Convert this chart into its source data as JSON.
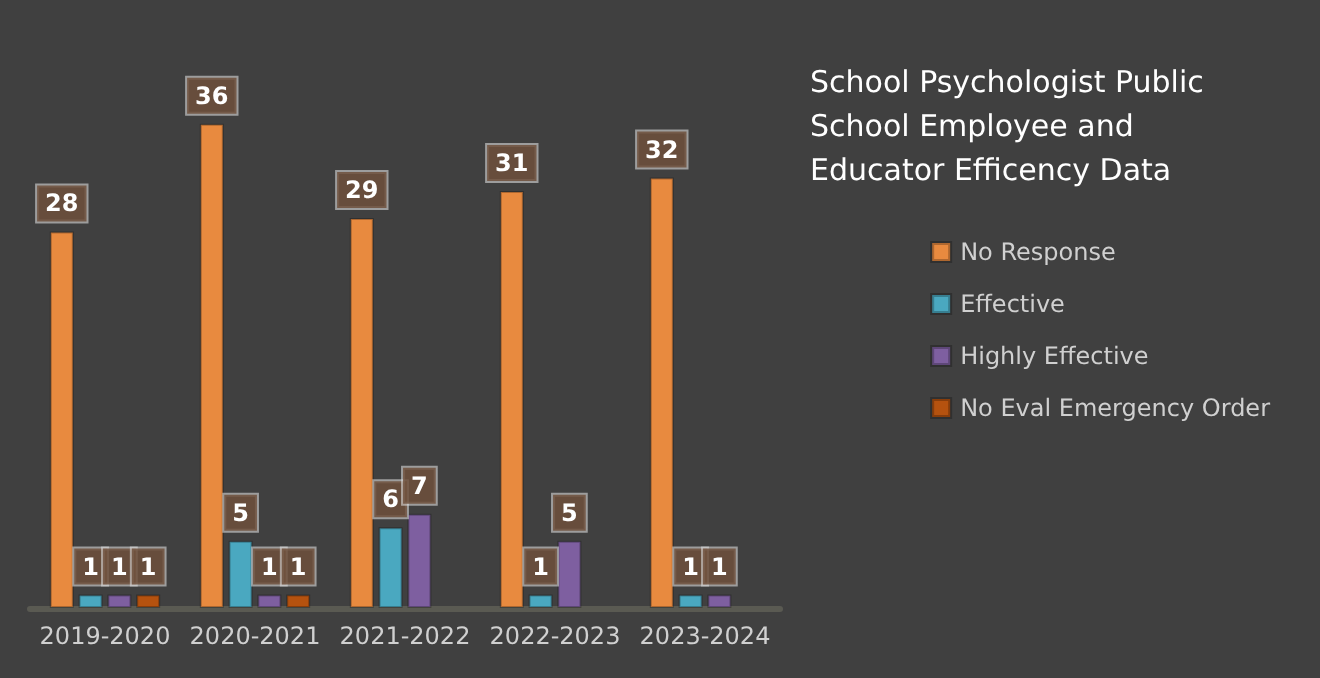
{
  "chart_data": {
    "type": "bar",
    "title": "School Psychologist Public School Employee and Educator Efficency Data",
    "categories": [
      "2019-2020",
      "2020-2021",
      "2021-2022",
      "2022-2023",
      "2023-2024"
    ],
    "series": [
      {
        "name": "No Response",
        "color": "#e88a3f",
        "values": [
          28,
          36,
          29,
          31,
          32
        ]
      },
      {
        "name": "Effective",
        "color": "#4aa8c0",
        "values": [
          1,
          5,
          6,
          1,
          1
        ]
      },
      {
        "name": "Highly Effective",
        "color": "#7e5fa0",
        "values": [
          1,
          1,
          7,
          5,
          1
        ]
      },
      {
        "name": "No Eval Emergency Order",
        "color": "#b5520f",
        "values": [
          1,
          1,
          null,
          null,
          null
        ]
      }
    ],
    "data_labels": true,
    "legend": "right"
  }
}
